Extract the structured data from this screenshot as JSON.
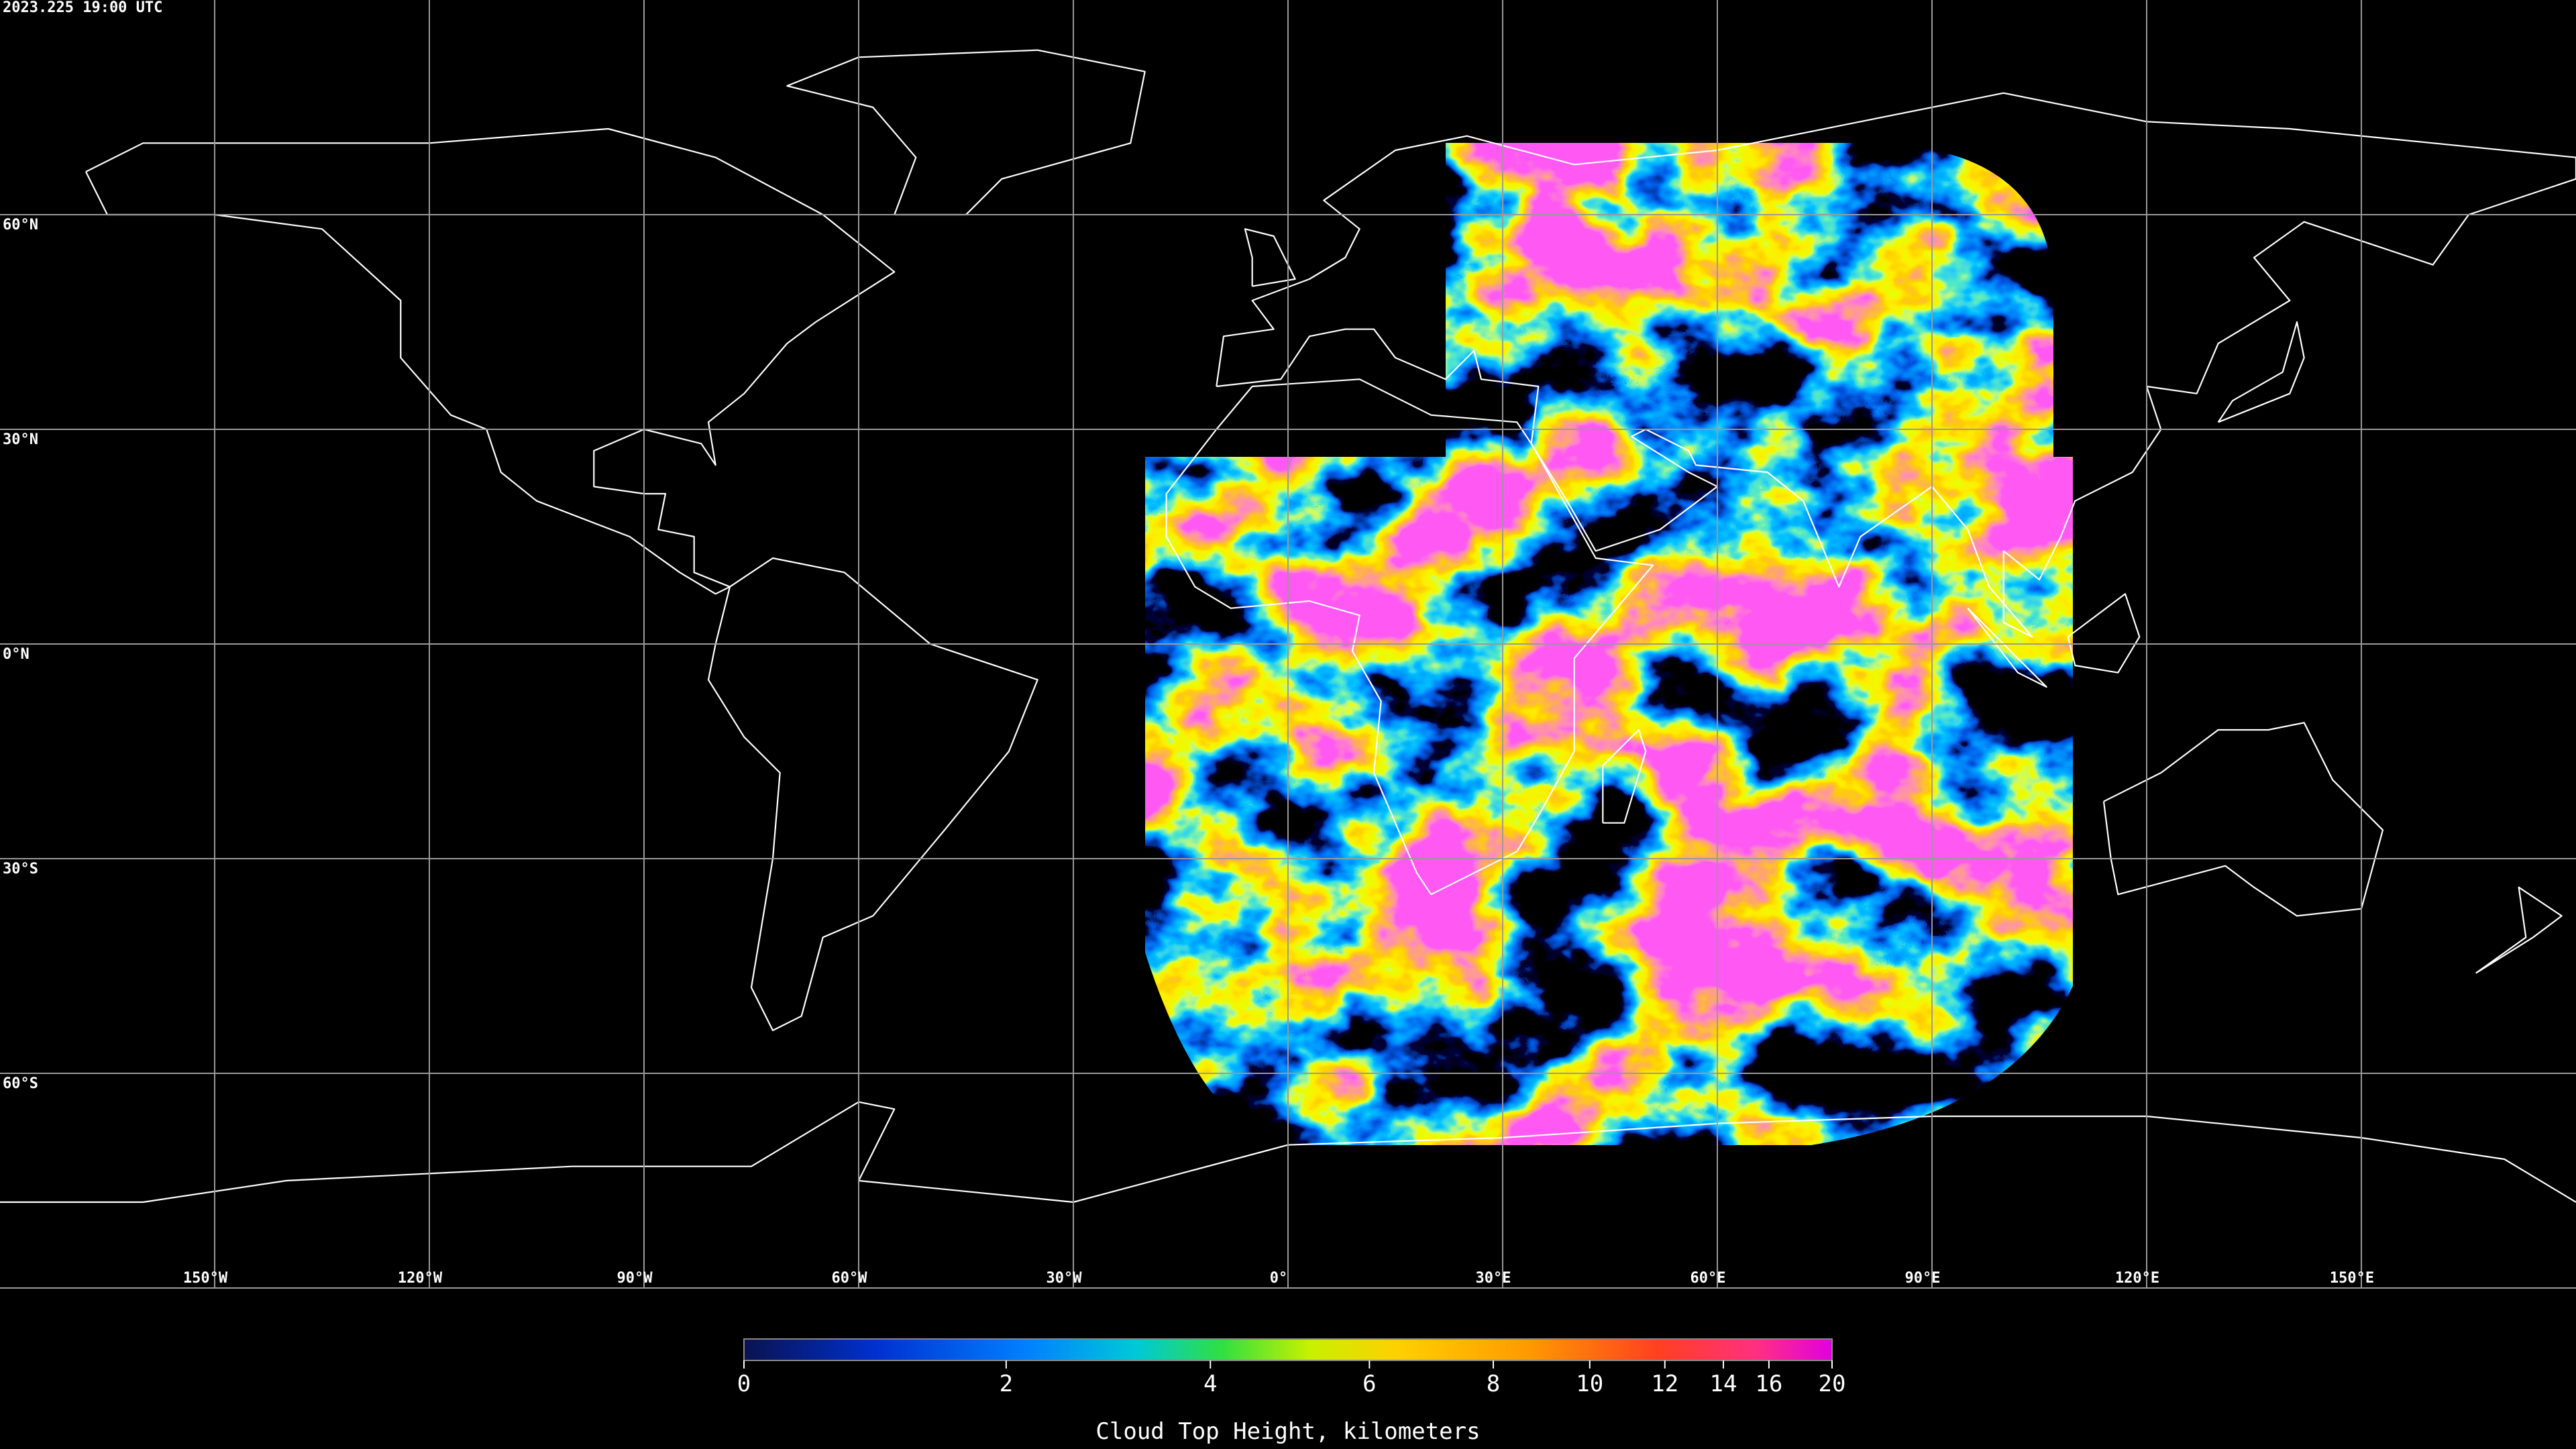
{
  "timestamp": "2023.225 19:00 UTC",
  "map": {
    "lat_labels": [
      {
        "value": 60,
        "label": "60°N"
      },
      {
        "value": 30,
        "label": "30°N"
      },
      {
        "value": 0,
        "label": "0°N"
      },
      {
        "value": -30,
        "label": "30°S"
      },
      {
        "value": -60,
        "label": "60°S"
      }
    ],
    "lon_labels": [
      {
        "value": -150,
        "label": "150°W"
      },
      {
        "value": -120,
        "label": "120°W"
      },
      {
        "value": -90,
        "label": "90°W"
      },
      {
        "value": -60,
        "label": "60°W"
      },
      {
        "value": -30,
        "label": "30°W"
      },
      {
        "value": 0,
        "label": "0°"
      },
      {
        "value": 30,
        "label": "30°E"
      },
      {
        "value": 60,
        "label": "60°E"
      },
      {
        "value": 90,
        "label": "90°E"
      },
      {
        "value": 120,
        "label": "120°E"
      },
      {
        "value": 150,
        "label": "150°E"
      }
    ]
  },
  "colorbar": {
    "title": "Cloud Top Height, kilometers",
    "range": [
      0,
      20
    ],
    "ticks": [
      0,
      2,
      4,
      6,
      8,
      10,
      12,
      14,
      16,
      20
    ]
  }
}
